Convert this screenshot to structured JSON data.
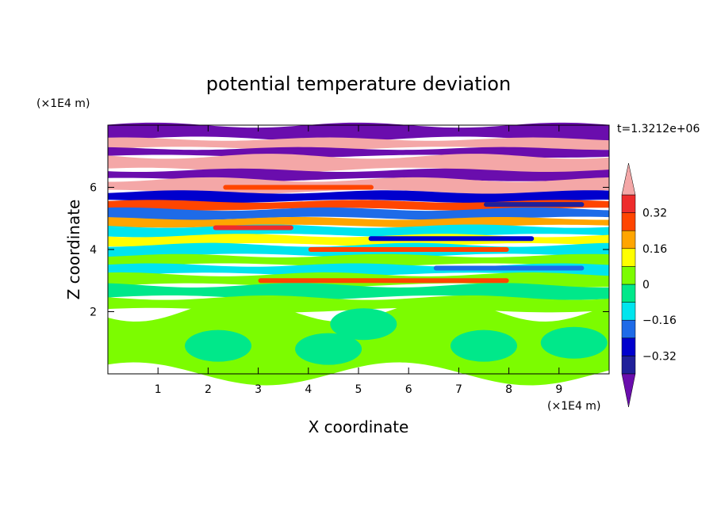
{
  "chart_data": {
    "type": "heatmap",
    "title": "potential temperature deviation",
    "xlabel": "X coordinate",
    "ylabel": "Z coordinate",
    "x_unit": "(×1E4 m)",
    "y_unit": "(×1E4 m)",
    "time_label": "t=1.3212e+06",
    "xlim": [
      0,
      10
    ],
    "ylim": [
      0,
      8
    ],
    "x_ticks": [
      "1",
      "2",
      "3",
      "4",
      "5",
      "6",
      "7",
      "8",
      "9"
    ],
    "y_ticks": [
      "2",
      "4",
      "6"
    ],
    "colorbar": {
      "levels": [
        -0.4,
        -0.32,
        -0.24,
        -0.16,
        -0.08,
        0,
        0.08,
        0.16,
        0.24,
        0.32,
        0.4
      ],
      "tick_labels": [
        "0.32",
        "0.16",
        "0",
        "−0.16",
        "−0.32"
      ],
      "tick_values": [
        0.32,
        0.16,
        0,
        -0.16,
        -0.32
      ],
      "colors": [
        "#6a0dad",
        "#20209a",
        "#0000cd",
        "#1e6be8",
        "#00e5ee",
        "#00e88a",
        "#7cfc00",
        "#ffff00",
        "#ffa500",
        "#ff4500",
        "#ee2c2c",
        "#f4a7a7"
      ],
      "extend": "both"
    },
    "bands": [
      {
        "z": [
          7.55,
          8.0
        ],
        "value": -0.45
      },
      {
        "z": [
          7.25,
          7.55
        ],
        "value": 0.42
      },
      {
        "z": [
          7.0,
          7.25
        ],
        "value": -0.45
      },
      {
        "z": [
          6.55,
          7.0
        ],
        "value": 0.42
      },
      {
        "z": [
          6.25,
          6.55
        ],
        "value": -0.45
      },
      {
        "z": [
          5.85,
          6.25
        ],
        "value": 0.42
      },
      {
        "z": [
          5.55,
          5.85
        ],
        "value": -0.3
      },
      {
        "z": [
          5.3,
          5.55
        ],
        "value": 0.3
      },
      {
        "z": [
          5.0,
          5.3
        ],
        "value": -0.2
      },
      {
        "z": [
          4.75,
          5.0
        ],
        "value": 0.2
      },
      {
        "z": [
          4.45,
          4.75
        ],
        "value": -0.1
      },
      {
        "z": [
          4.15,
          4.45
        ],
        "value": 0.1
      },
      {
        "z": [
          3.8,
          4.15
        ],
        "value": -0.12
      },
      {
        "z": [
          3.5,
          3.8
        ],
        "value": 0.06
      },
      {
        "z": [
          3.2,
          3.5
        ],
        "value": -0.1
      },
      {
        "z": [
          2.85,
          3.2
        ],
        "value": 0.04
      },
      {
        "z": [
          2.45,
          2.85
        ],
        "value": -0.04
      },
      {
        "z": [
          2.05,
          2.45
        ],
        "value": 0.05
      },
      {
        "z": [
          0.0,
          2.05
        ],
        "value": 0.04
      }
    ],
    "blobs": [
      {
        "x": 2.2,
        "z": 0.9,
        "value": -0.02
      },
      {
        "x": 4.4,
        "z": 0.8,
        "value": -0.02
      },
      {
        "x": 7.5,
        "z": 0.9,
        "value": -0.02
      },
      {
        "x": 9.3,
        "z": 1.0,
        "value": -0.02
      },
      {
        "x": 5.1,
        "z": 1.6,
        "value": -0.02
      }
    ],
    "streaks": [
      {
        "x": [
          2.3,
          5.3
        ],
        "z": 6.0,
        "value": 0.3
      },
      {
        "x": [
          7.5,
          9.5
        ],
        "z": 5.45,
        "value": -0.35
      },
      {
        "x": [
          2.1,
          3.7
        ],
        "z": 4.7,
        "value": 0.32
      },
      {
        "x": [
          5.2,
          8.5
        ],
        "z": 4.35,
        "value": -0.3
      },
      {
        "x": [
          4.0,
          8.0
        ],
        "z": 4.0,
        "value": 0.3
      },
      {
        "x": [
          6.5,
          9.5
        ],
        "z": 3.4,
        "value": -0.2
      },
      {
        "x": [
          3.0,
          8.0
        ],
        "z": 3.0,
        "value": 0.3
      }
    ]
  }
}
